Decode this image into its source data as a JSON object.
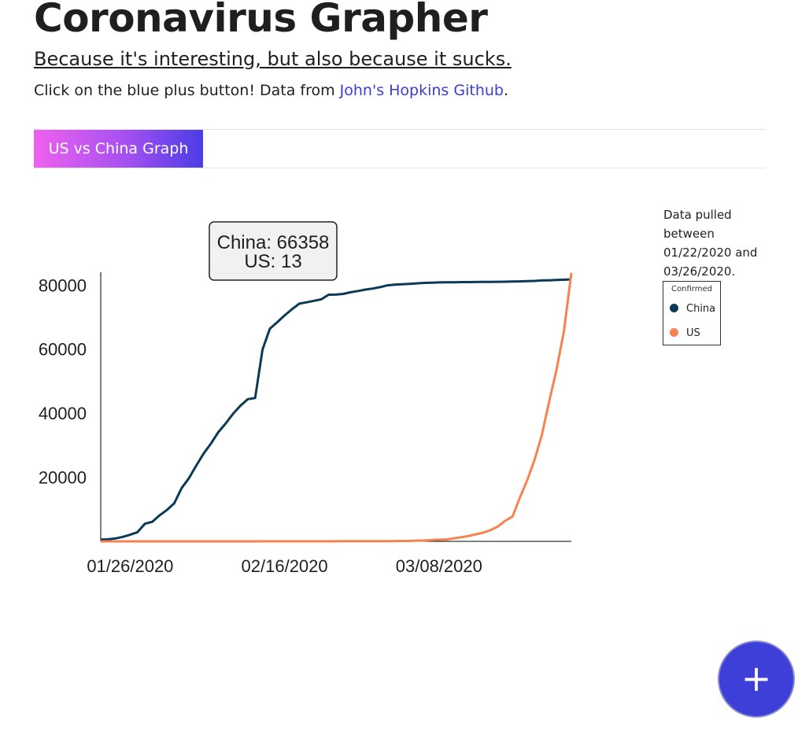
{
  "header": {
    "title": "Coronavirus Grapher",
    "subtitle": "Because it's interesting, but also because it sucks.",
    "intro_text": "Click on the blue plus button! Data from ",
    "link_text": "John's Hopkins Github",
    "intro_end": "."
  },
  "tabs": [
    {
      "label": "US vs China Graph",
      "active": true
    }
  ],
  "info": {
    "pulled_text": "Data pulled between 01/22/2020 and 03/26/2020."
  },
  "legend": {
    "title": "Confirmed",
    "items": [
      {
        "label": "China",
        "color": "#0b3a55"
      },
      {
        "label": "US",
        "color": "#f5834f"
      }
    ]
  },
  "tooltip": {
    "line1": "China: 66358",
    "line2": "US: 13"
  },
  "fab": {
    "icon": "plus-icon",
    "label": "+",
    "color": "#3e3ed8"
  },
  "chart_data": {
    "type": "line",
    "x_type": "date",
    "ylim": [
      0,
      84000
    ],
    "y_ticks": [
      20000,
      40000,
      60000,
      80000
    ],
    "x_ticks": [
      "01/26/2020",
      "02/16/2020",
      "03/08/2020"
    ],
    "x_start": "01/22/2020",
    "x_end": "03/26/2020",
    "grid": false,
    "legend_position": "right",
    "series": [
      {
        "name": "China",
        "color": "#0b3a55",
        "points": [
          [
            "01/22/2020",
            548
          ],
          [
            "01/23/2020",
            643
          ],
          [
            "01/24/2020",
            920
          ],
          [
            "01/25/2020",
            1406
          ],
          [
            "01/26/2020",
            2075
          ],
          [
            "01/27/2020",
            2877
          ],
          [
            "01/28/2020",
            5509
          ],
          [
            "01/29/2020",
            6087
          ],
          [
            "01/30/2020",
            8141
          ],
          [
            "01/31/2020",
            9802
          ],
          [
            "02/01/2020",
            11891
          ],
          [
            "02/02/2020",
            16630
          ],
          [
            "02/03/2020",
            19716
          ],
          [
            "02/04/2020",
            23707
          ],
          [
            "02/05/2020",
            27440
          ],
          [
            "02/06/2020",
            30587
          ],
          [
            "02/07/2020",
            34110
          ],
          [
            "02/08/2020",
            36814
          ],
          [
            "02/09/2020",
            39829
          ],
          [
            "02/10/2020",
            42354
          ],
          [
            "02/11/2020",
            44386
          ],
          [
            "02/12/2020",
            44759
          ],
          [
            "02/13/2020",
            59895
          ],
          [
            "02/14/2020",
            66358
          ],
          [
            "02/15/2020",
            68413
          ],
          [
            "02/16/2020",
            70513
          ],
          [
            "02/17/2020",
            72434
          ],
          [
            "02/18/2020",
            74211
          ],
          [
            "02/19/2020",
            74619
          ],
          [
            "02/20/2020",
            75077
          ],
          [
            "02/21/2020",
            75550
          ],
          [
            "02/22/2020",
            77001
          ],
          [
            "02/23/2020",
            77022
          ],
          [
            "02/24/2020",
            77241
          ],
          [
            "02/25/2020",
            77754
          ],
          [
            "02/26/2020",
            78166
          ],
          [
            "02/27/2020",
            78600
          ],
          [
            "02/28/2020",
            78928
          ],
          [
            "02/29/2020",
            79356
          ],
          [
            "03/01/2020",
            79932
          ],
          [
            "03/02/2020",
            80136
          ],
          [
            "03/03/2020",
            80261
          ],
          [
            "03/04/2020",
            80386
          ],
          [
            "03/05/2020",
            80537
          ],
          [
            "03/06/2020",
            80690
          ],
          [
            "03/07/2020",
            80770
          ],
          [
            "03/08/2020",
            80823
          ],
          [
            "03/09/2020",
            80860
          ],
          [
            "03/10/2020",
            80887
          ],
          [
            "03/11/2020",
            80921
          ],
          [
            "03/12/2020",
            80932
          ],
          [
            "03/13/2020",
            80945
          ],
          [
            "03/14/2020",
            80977
          ],
          [
            "03/15/2020",
            81003
          ],
          [
            "03/16/2020",
            81033
          ],
          [
            "03/17/2020",
            81058
          ],
          [
            "03/18/2020",
            81102
          ],
          [
            "03/19/2020",
            81156
          ],
          [
            "03/20/2020",
            81250
          ],
          [
            "03/21/2020",
            81305
          ],
          [
            "03/22/2020",
            81435
          ],
          [
            "03/23/2020",
            81498
          ],
          [
            "03/24/2020",
            81591
          ],
          [
            "03/25/2020",
            81661
          ],
          [
            "03/26/2020",
            81782
          ]
        ]
      },
      {
        "name": "US",
        "color": "#f5834f",
        "points": [
          [
            "01/22/2020",
            1
          ],
          [
            "01/23/2020",
            1
          ],
          [
            "01/24/2020",
            2
          ],
          [
            "01/25/2020",
            2
          ],
          [
            "01/26/2020",
            5
          ],
          [
            "01/27/2020",
            5
          ],
          [
            "01/28/2020",
            5
          ],
          [
            "01/29/2020",
            5
          ],
          [
            "01/30/2020",
            5
          ],
          [
            "01/31/2020",
            7
          ],
          [
            "02/01/2020",
            8
          ],
          [
            "02/02/2020",
            8
          ],
          [
            "02/03/2020",
            11
          ],
          [
            "02/04/2020",
            11
          ],
          [
            "02/05/2020",
            11
          ],
          [
            "02/06/2020",
            11
          ],
          [
            "02/07/2020",
            11
          ],
          [
            "02/08/2020",
            11
          ],
          [
            "02/09/2020",
            11
          ],
          [
            "02/10/2020",
            11
          ],
          [
            "02/11/2020",
            12
          ],
          [
            "02/12/2020",
            12
          ],
          [
            "02/13/2020",
            13
          ],
          [
            "02/14/2020",
            13
          ],
          [
            "02/15/2020",
            13
          ],
          [
            "02/16/2020",
            13
          ],
          [
            "02/17/2020",
            13
          ],
          [
            "02/18/2020",
            13
          ],
          [
            "02/19/2020",
            13
          ],
          [
            "02/20/2020",
            13
          ],
          [
            "02/21/2020",
            15
          ],
          [
            "02/22/2020",
            15
          ],
          [
            "02/23/2020",
            15
          ],
          [
            "02/24/2020",
            51
          ],
          [
            "02/25/2020",
            51
          ],
          [
            "02/26/2020",
            57
          ],
          [
            "02/27/2020",
            58
          ],
          [
            "02/28/2020",
            60
          ],
          [
            "02/29/2020",
            68
          ],
          [
            "03/01/2020",
            74
          ],
          [
            "03/02/2020",
            98
          ],
          [
            "03/03/2020",
            118
          ],
          [
            "03/04/2020",
            149
          ],
          [
            "03/05/2020",
            217
          ],
          [
            "03/06/2020",
            262
          ],
          [
            "03/07/2020",
            402
          ],
          [
            "03/08/2020",
            518
          ],
          [
            "03/09/2020",
            583
          ],
          [
            "03/10/2020",
            959
          ],
          [
            "03/11/2020",
            1281
          ],
          [
            "03/12/2020",
            1663
          ],
          [
            "03/13/2020",
            2179
          ],
          [
            "03/14/2020",
            2726
          ],
          [
            "03/15/2020",
            3499
          ],
          [
            "03/16/2020",
            4632
          ],
          [
            "03/17/2020",
            6421
          ],
          [
            "03/18/2020",
            7786
          ],
          [
            "03/19/2020",
            13680
          ],
          [
            "03/20/2020",
            19101
          ],
          [
            "03/21/2020",
            25493
          ],
          [
            "03/22/2020",
            33276
          ],
          [
            "03/23/2020",
            43847
          ],
          [
            "03/24/2020",
            53740
          ],
          [
            "03/25/2020",
            65778
          ],
          [
            "03/26/2020",
            83836
          ]
        ]
      }
    ]
  }
}
